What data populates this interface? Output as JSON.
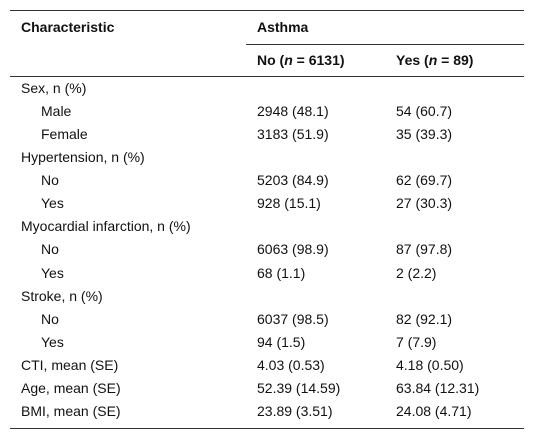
{
  "header": {
    "first": "Characteristic",
    "group": "Asthma",
    "subcolumns": [
      {
        "parts": [
          "No (",
          "n",
          " = 6131)"
        ]
      },
      {
        "parts": [
          "Yes (",
          "n",
          " = 89)"
        ]
      }
    ]
  },
  "body": [
    {
      "label": "Sex, n (%)",
      "items": [
        {
          "label": "Male",
          "values": [
            "2948 (48.1)",
            "54 (60.7)"
          ]
        },
        {
          "label": "Female",
          "values": [
            "3183 (51.9)",
            "35 (39.3)"
          ]
        }
      ]
    },
    {
      "label": "Hypertension, n (%)",
      "items": [
        {
          "label": "No",
          "values": [
            "5203 (84.9)",
            "62 (69.7)"
          ]
        },
        {
          "label": "Yes",
          "values": [
            "928 (15.1)",
            "27 (30.3)"
          ]
        }
      ]
    },
    {
      "label": "Myocardial infarction, n (%)",
      "items": [
        {
          "label": "No",
          "values": [
            "6063 (98.9)",
            "87 (97.8)"
          ]
        },
        {
          "label": "Yes",
          "values": [
            "68 (1.1)",
            "2 (2.2)"
          ]
        }
      ]
    },
    {
      "label": "Stroke, n (%)",
      "items": [
        {
          "label": "No",
          "values": [
            "6037 (98.5)",
            "82 (92.1)"
          ]
        },
        {
          "label": "Yes",
          "values": [
            "94 (1.5)",
            "7 (7.9)"
          ]
        }
      ]
    },
    {
      "label": "CTI, mean (SE)",
      "values": [
        "4.03 (0.53)",
        "4.18 (0.50)"
      ]
    },
    {
      "label": "Age, mean (SE)",
      "values": [
        "52.39 (14.59)",
        "63.84 (12.31)"
      ]
    },
    {
      "label": "BMI, mean (SE)",
      "values": [
        "23.89 (3.51)",
        "24.08 (4.71)"
      ]
    }
  ]
}
